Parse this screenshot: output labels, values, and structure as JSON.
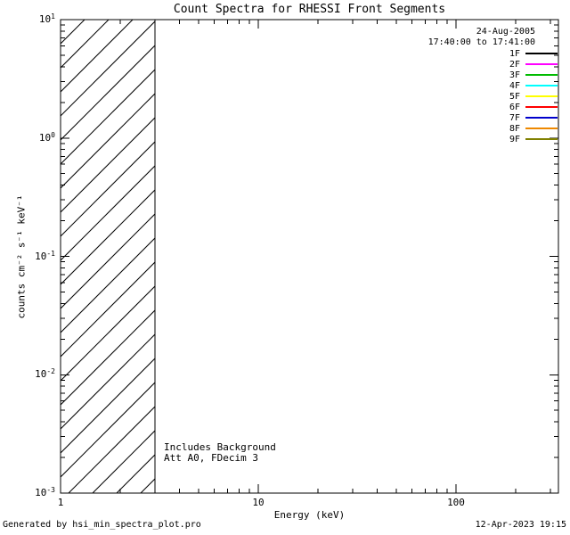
{
  "chart_data": {
    "type": "line",
    "title": "Count Spectra for RHESSI Front Segments",
    "xlabel": "Energy (keV)",
    "ylabel": "counts cm⁻² s⁻¹ keV⁻¹",
    "x_scale": "log",
    "y_scale": "log",
    "xlim": [
      1,
      330
    ],
    "ylim": [
      0.001,
      10
    ],
    "grid": false,
    "x_ticks": [
      {
        "value": 1,
        "label": "1"
      },
      {
        "value": 10,
        "label": "10"
      },
      {
        "value": 100,
        "label": "100"
      }
    ],
    "y_ticks": [
      {
        "value": 10,
        "base": "10",
        "exp": "1"
      },
      {
        "value": 1,
        "base": "10",
        "exp": "0"
      },
      {
        "value": 0.1,
        "base": "10",
        "exp": "-1"
      },
      {
        "value": 0.01,
        "base": "10",
        "exp": "-2"
      },
      {
        "value": 0.001,
        "base": "10",
        "exp": "-3"
      }
    ],
    "series": [],
    "hatched_region": {
      "x_start": 1,
      "x_end": 3
    },
    "legend": {
      "position": "top-right",
      "date": "24-Aug-2005",
      "time_range": "17:40:00 to 17:41:00",
      "entries": [
        {
          "label": "1F",
          "color": "#000000"
        },
        {
          "label": "2F",
          "color": "#ff00ff"
        },
        {
          "label": "3F",
          "color": "#00bb00"
        },
        {
          "label": "4F",
          "color": "#00ffff"
        },
        {
          "label": "5F",
          "color": "#ffff00"
        },
        {
          "label": "6F",
          "color": "#ff0000"
        },
        {
          "label": "7F",
          "color": "#0000cc"
        },
        {
          "label": "8F",
          "color": "#ee8800"
        },
        {
          "label": "9F",
          "color": "#808000"
        }
      ]
    },
    "annotations": [
      "Includes Background",
      "Att A0, FDecim 3"
    ],
    "footer_left": "Generated by hsi_min_spectra_plot.pro",
    "footer_right": "12-Apr-2023 19:15"
  }
}
